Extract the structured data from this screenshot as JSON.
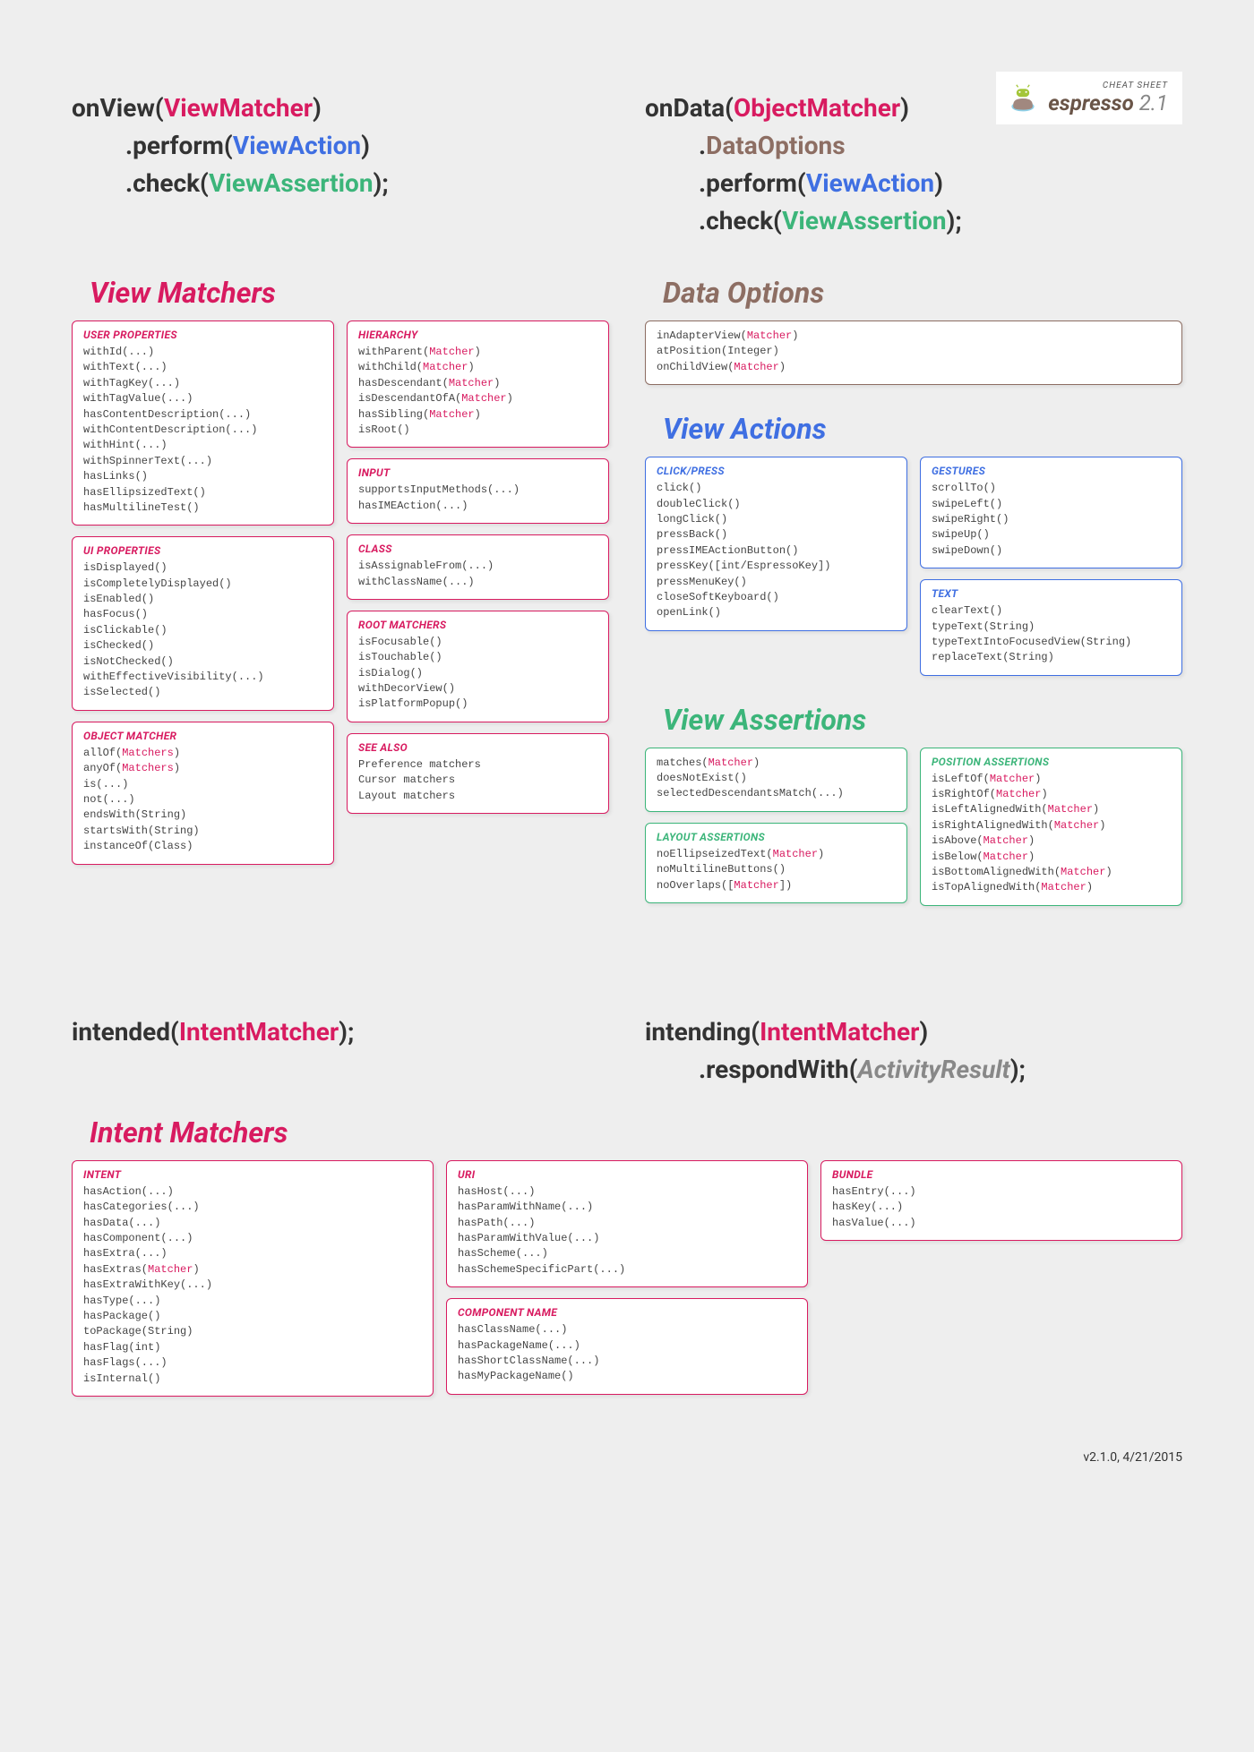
{
  "logo": {
    "small": "CHEAT SHEET",
    "name": "espresso",
    "version": "2.1"
  },
  "colors": {
    "red": "#d81b60",
    "blue": "#3f6fe2",
    "green": "#3cb57a",
    "brown": "#8d6e63",
    "bg": "#eeeeee"
  },
  "sig_onview": {
    "fn": "onView",
    "arg": "ViewMatcher",
    "l2a": ".perform(",
    "l2b": "ViewAction",
    "l2c": ")",
    "l3a": ".check(",
    "l3b": "ViewAssertion",
    "l3c": ");"
  },
  "sig_ondata": {
    "fn": "onData",
    "arg": "ObjectMatcher",
    "l2": ".",
    "l2b": "DataOptions",
    "l3a": ".perform(",
    "l3b": "ViewAction",
    "l3c": ")",
    "l4a": ".check(",
    "l4b": "ViewAssertion",
    "l4c": ");"
  },
  "sig_intended": {
    "fn": "intended",
    "arg": "IntentMatcher",
    "end": ");"
  },
  "sig_intending": {
    "fn": "intending",
    "arg": "IntentMatcher",
    "l2a": ".respondWith(",
    "l2b": "ActivityResult",
    "l2c": ");"
  },
  "sections": {
    "view_matchers": "View Matchers",
    "data_options": "Data Options",
    "view_actions": "View Actions",
    "view_assertions": "View Assertions",
    "intent_matchers": "Intent Matchers"
  },
  "vm": {
    "user_props": {
      "title": "USER PROPERTIES",
      "items": [
        "withId(...)",
        "withText(...)",
        "withTagKey(...)",
        "withTagValue(...)",
        "hasContentDescription(...)",
        "withContentDescription(...)",
        "withHint(...)",
        "withSpinnerText(...)",
        "hasLinks()",
        "hasEllipsizedText()",
        "hasMultilineTest()"
      ]
    },
    "ui_props": {
      "title": "UI PROPERTIES",
      "items": [
        "isDisplayed()",
        "isCompletelyDisplayed()",
        "isEnabled()",
        "hasFocus()",
        "isClickable()",
        "isChecked()",
        "isNotChecked()",
        "withEffectiveVisibility(...)",
        "isSelected()"
      ]
    },
    "obj_matcher": {
      "title": "OBJECT MATCHER",
      "items": [
        [
          "allOf(",
          "Matchers",
          ")"
        ],
        [
          "anyOf(",
          "Matchers",
          ")"
        ],
        "is(...)",
        "not(...)",
        "endsWith(String)",
        "startsWith(String)",
        "instanceOf(Class)"
      ]
    },
    "hierarchy": {
      "title": "HIERARCHY",
      "items": [
        [
          "withParent(",
          "Matcher",
          ")"
        ],
        [
          "withChild(",
          "Matcher",
          ")"
        ],
        [
          "hasDescendant(",
          "Matcher",
          ")"
        ],
        [
          "isDescendantOfA(",
          "Matcher",
          ")"
        ],
        [
          "hasSibling(",
          "Matcher",
          ")"
        ],
        "isRoot()"
      ]
    },
    "input": {
      "title": "INPUT",
      "items": [
        "supportsInputMethods(...)",
        "hasIMEAction(...)"
      ]
    },
    "klass": {
      "title": "CLASS",
      "items": [
        "isAssignableFrom(...)",
        "withClassName(...)"
      ]
    },
    "root": {
      "title": "ROOT MATCHERS",
      "items": [
        "isFocusable()",
        "isTouchable()",
        "isDialog()",
        "withDecorView()",
        "isPlatformPopup()"
      ]
    },
    "see_also": {
      "title": "SEE ALSO",
      "items": [
        "Preference matchers",
        "Cursor matchers",
        "Layout matchers"
      ]
    }
  },
  "data_opts": {
    "items": [
      [
        "inAdapterView(",
        "Matcher",
        ")"
      ],
      "atPosition(Integer)",
      [
        "onChildView(",
        "Matcher",
        ")"
      ]
    ]
  },
  "va": {
    "click": {
      "title": "CLICK/PRESS",
      "items": [
        "click()",
        "doubleClick()",
        "longClick()",
        "pressBack()",
        "pressIMEActionButton()",
        "pressKey([int/EspressoKey])",
        "pressMenuKey()",
        "closeSoftKeyboard()",
        "openLink()"
      ]
    },
    "gestures": {
      "title": "GESTURES",
      "items": [
        "scrollTo()",
        "swipeLeft()",
        "swipeRight()",
        "swipeUp()",
        "swipeDown()"
      ]
    },
    "text": {
      "title": "TEXT",
      "items": [
        "clearText()",
        "typeText(String)",
        "typeTextIntoFocusedView(String)",
        "replaceText(String)"
      ]
    }
  },
  "vassert": {
    "core": {
      "items": [
        [
          "matches(",
          "Matcher",
          ")"
        ],
        "doesNotExist()",
        "selectedDescendantsMatch(...)"
      ]
    },
    "layout": {
      "title": "LAYOUT ASSERTIONS",
      "items": [
        [
          "noEllipseizedText(",
          "Matcher",
          ")"
        ],
        "noMultilineButtons()",
        [
          "noOverlaps([",
          "Matcher",
          "])"
        ]
      ]
    },
    "position": {
      "title": "POSITION ASSERTIONS",
      "items": [
        [
          "isLeftOf(",
          "Matcher",
          ")"
        ],
        [
          "isRightOf(",
          "Matcher",
          ")"
        ],
        [
          "isLeftAlignedWith(",
          "Matcher",
          ")"
        ],
        [
          "isRightAlignedWith(",
          "Matcher",
          ")"
        ],
        [
          "isAbove(",
          "Matcher",
          ")"
        ],
        [
          "isBelow(",
          "Matcher",
          ")"
        ],
        [
          "isBottomAlignedWith(",
          "Matcher",
          ")"
        ],
        [
          "isTopAlignedWith(",
          "Matcher",
          ")"
        ]
      ]
    }
  },
  "im": {
    "intent": {
      "title": "INTENT",
      "items": [
        "hasAction(...)",
        "hasCategories(...)",
        "hasData(...)",
        "hasComponent(...)",
        "hasExtra(...)",
        [
          "hasExtras(",
          "Matcher",
          ")"
        ],
        "hasExtraWithKey(...)",
        "hasType(...)",
        "hasPackage()",
        "toPackage(String)",
        "hasFlag(int)",
        "hasFlags(...)",
        "isInternal()"
      ]
    },
    "uri": {
      "title": "URI",
      "items": [
        "hasHost(...)",
        "hasParamWithName(...)",
        "hasPath(...)",
        "hasParamWithValue(...)",
        "hasScheme(...)",
        "hasSchemeSpecificPart(...)"
      ]
    },
    "comp": {
      "title": "COMPONENT NAME",
      "items": [
        "hasClassName(...)",
        "hasPackageName(...)",
        "hasShortClassName(...)",
        "hasMyPackageName()"
      ]
    },
    "bundle": {
      "title": "BUNDLE",
      "items": [
        "hasEntry(...)",
        "hasKey(...)",
        "hasValue(...)"
      ]
    }
  },
  "footer": "v2.1.0, 4/21/2015"
}
